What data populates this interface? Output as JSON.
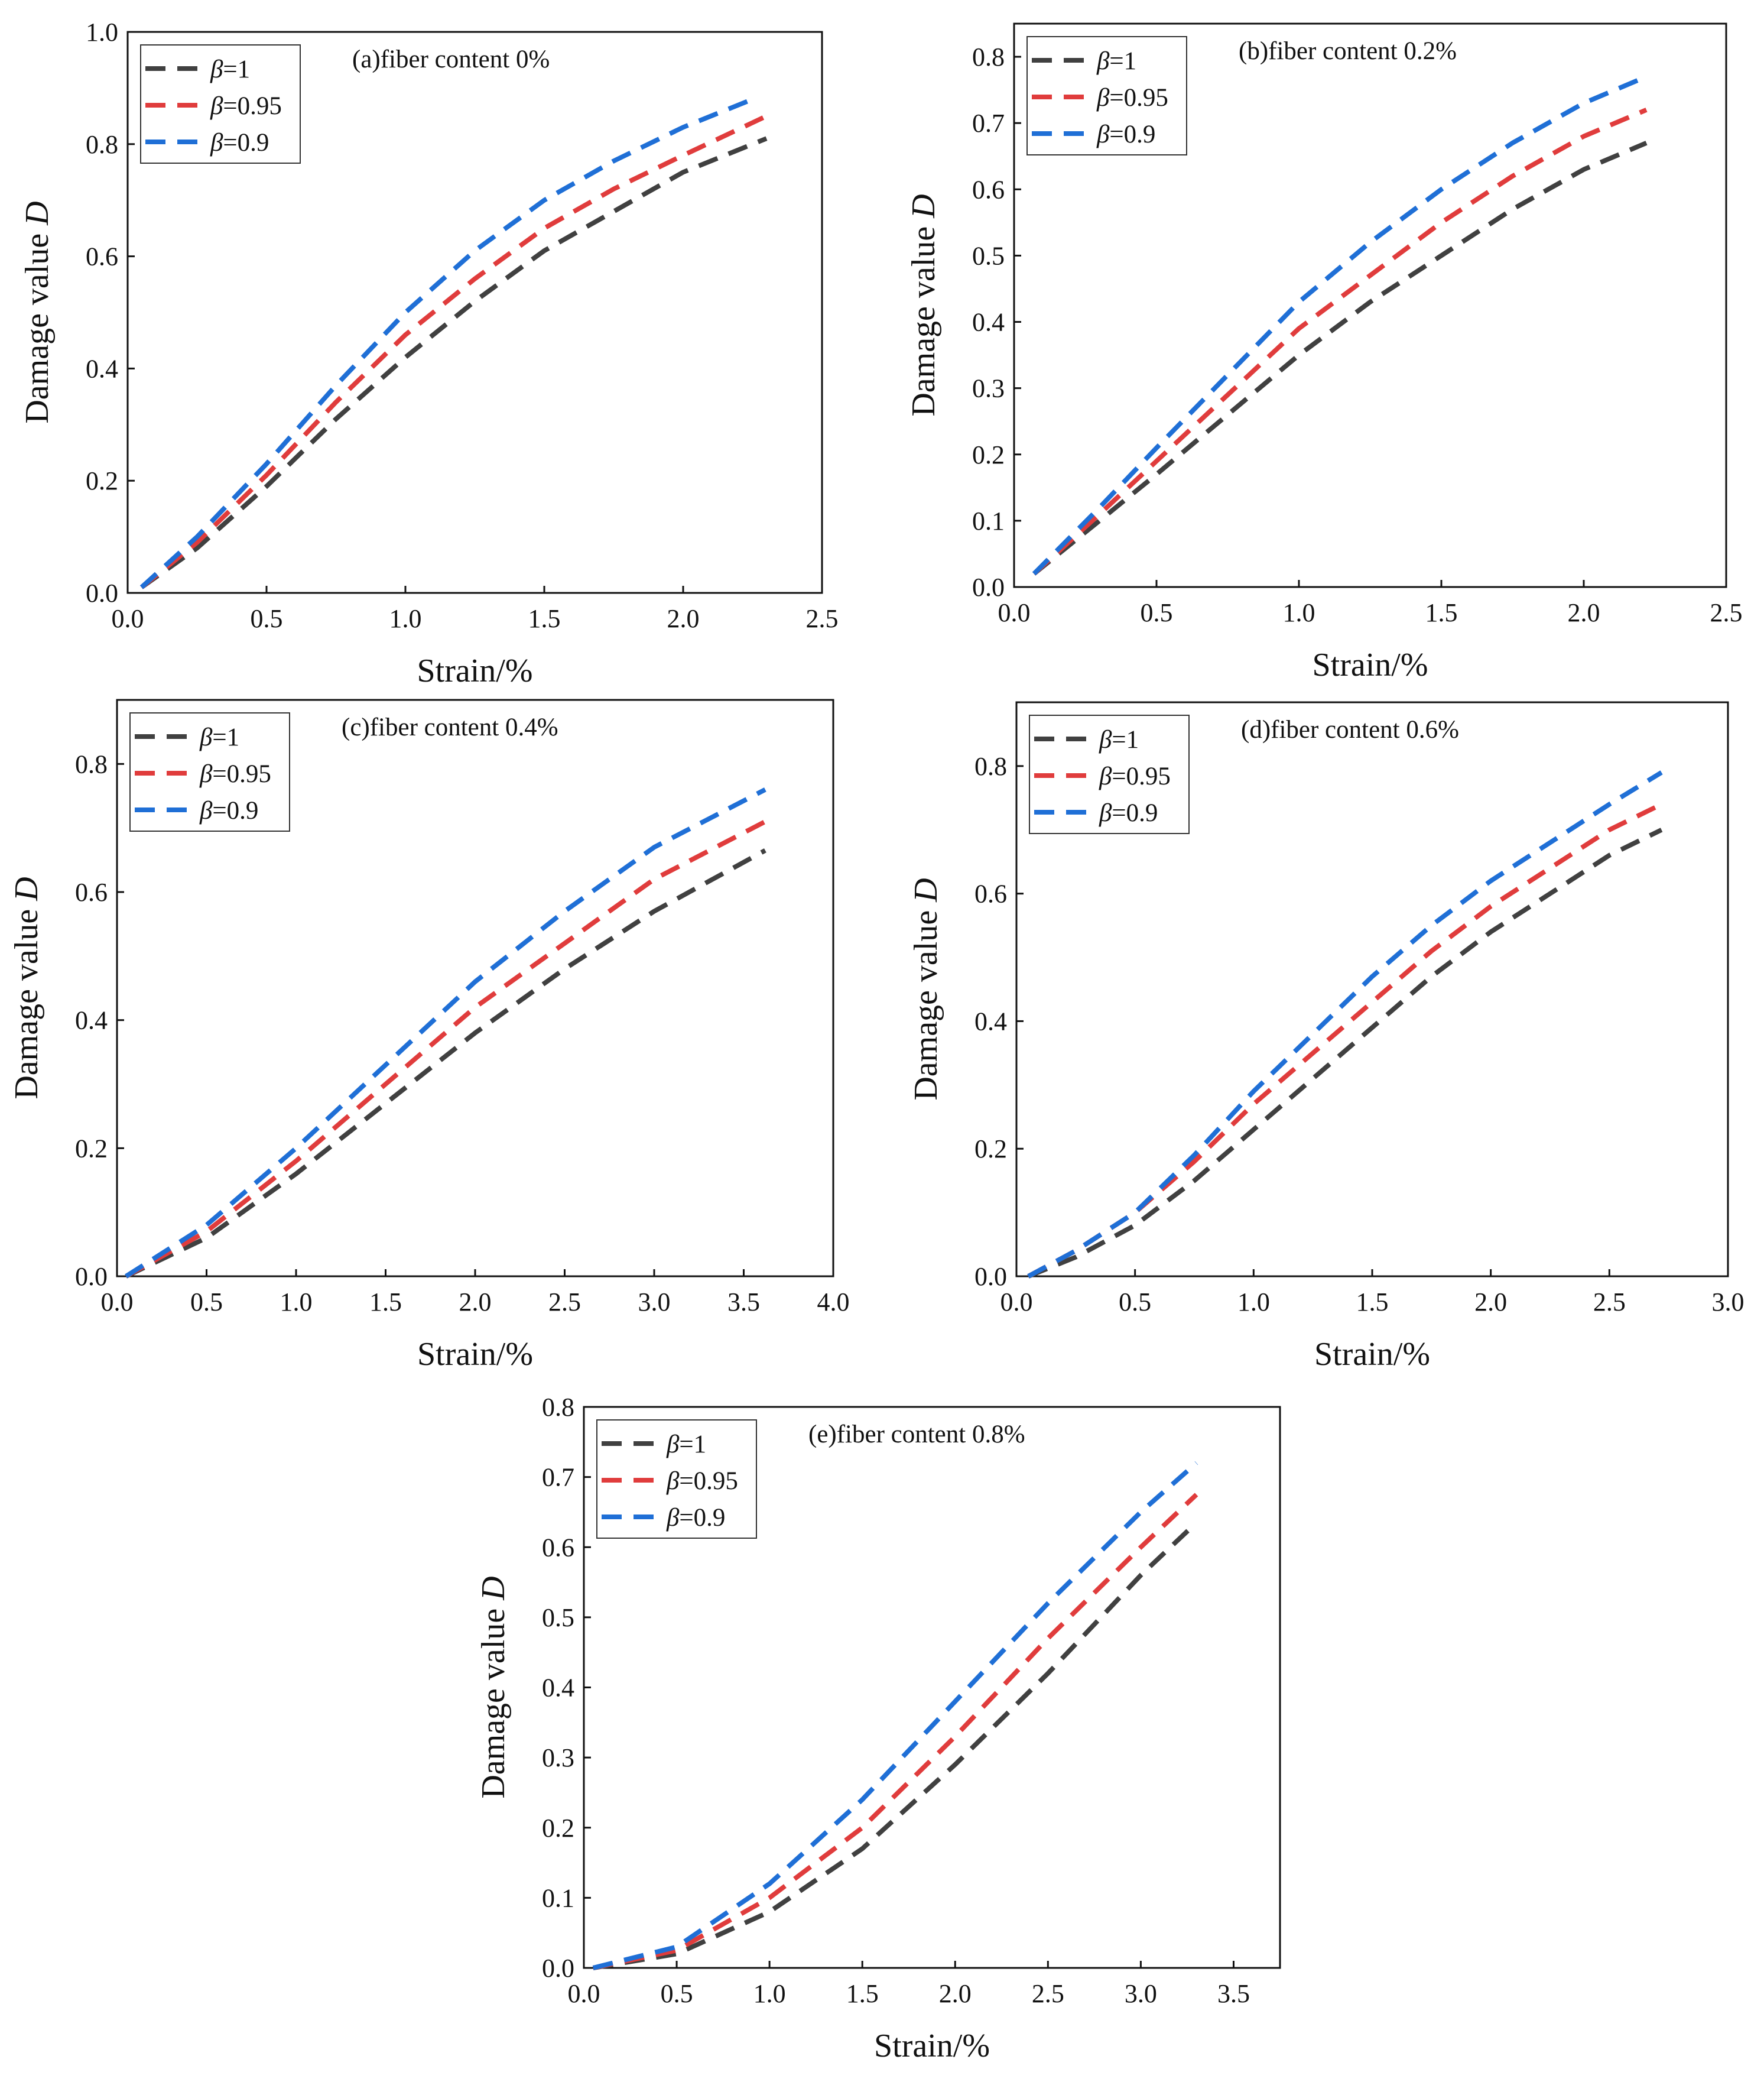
{
  "chart_data": [
    {
      "type": "line",
      "id": "a",
      "title": "(a)fiber content 0%",
      "xlabel": "Strain/%",
      "ylabel": "Damage value D",
      "xlim": [
        0,
        2.5
      ],
      "ylim": [
        0,
        1.0
      ],
      "xticks": [
        "0.0",
        "0.5",
        "1.0",
        "1.5",
        "2.0",
        "2.5"
      ],
      "yticks": [
        "0.0",
        "0.2",
        "0.4",
        "0.6",
        "0.8",
        "1.0"
      ],
      "series": [
        {
          "name": "β=1",
          "beta": "1",
          "color": "#404040",
          "x": [
            0.05,
            0.25,
            0.5,
            0.75,
            1.0,
            1.25,
            1.5,
            1.75,
            2.0,
            2.3
          ],
          "y": [
            0.01,
            0.08,
            0.19,
            0.31,
            0.42,
            0.52,
            0.61,
            0.68,
            0.75,
            0.81
          ]
        },
        {
          "name": "β=0.95",
          "beta": "0.95",
          "color": "#e03c3c",
          "x": [
            0.05,
            0.25,
            0.5,
            0.75,
            1.0,
            1.25,
            1.5,
            1.75,
            2.0,
            2.3
          ],
          "y": [
            0.01,
            0.09,
            0.21,
            0.34,
            0.46,
            0.56,
            0.65,
            0.72,
            0.78,
            0.85
          ]
        },
        {
          "name": "β=0.9",
          "beta": "0.9",
          "color": "#1f6fd6",
          "x": [
            0.05,
            0.25,
            0.5,
            0.75,
            1.0,
            1.25,
            1.5,
            1.75,
            2.0,
            2.25
          ],
          "y": [
            0.01,
            0.1,
            0.23,
            0.37,
            0.5,
            0.61,
            0.7,
            0.77,
            0.83,
            0.88
          ]
        }
      ]
    },
    {
      "type": "line",
      "id": "b",
      "title": "(b)fiber content 0.2%",
      "xlabel": "Strain/%",
      "ylabel": "Damage value D",
      "xlim": [
        0,
        2.5
      ],
      "ylim": [
        0,
        0.85
      ],
      "xticks": [
        "0.0",
        "0.5",
        "1.0",
        "1.5",
        "2.0",
        "2.5"
      ],
      "yticks": [
        "0.0",
        "0.1",
        "0.2",
        "0.3",
        "0.4",
        "0.5",
        "0.6",
        "0.7",
        "0.8"
      ],
      "series": [
        {
          "name": "β=1",
          "beta": "1",
          "color": "#404040",
          "x": [
            0.07,
            0.3,
            0.5,
            0.75,
            1.0,
            1.25,
            1.5,
            1.75,
            2.0,
            2.22
          ],
          "y": [
            0.02,
            0.1,
            0.17,
            0.26,
            0.35,
            0.43,
            0.5,
            0.57,
            0.63,
            0.67
          ]
        },
        {
          "name": "β=0.95",
          "beta": "0.95",
          "color": "#e03c3c",
          "x": [
            0.07,
            0.3,
            0.5,
            0.75,
            1.0,
            1.25,
            1.5,
            1.75,
            2.0,
            2.22
          ],
          "y": [
            0.02,
            0.11,
            0.19,
            0.29,
            0.39,
            0.47,
            0.55,
            0.62,
            0.68,
            0.72
          ]
        },
        {
          "name": "β=0.9",
          "beta": "0.9",
          "color": "#1f6fd6",
          "x": [
            0.07,
            0.3,
            0.5,
            0.75,
            1.0,
            1.25,
            1.5,
            1.75,
            2.0,
            2.22
          ],
          "y": [
            0.02,
            0.12,
            0.21,
            0.32,
            0.43,
            0.52,
            0.6,
            0.67,
            0.73,
            0.77
          ]
        }
      ]
    },
    {
      "type": "line",
      "id": "c",
      "title": "(c)fiber content 0.4%",
      "xlabel": "Strain/%",
      "ylabel": "Damage value D",
      "xlim": [
        0,
        4.0
      ],
      "ylim": [
        0,
        0.9
      ],
      "xticks": [
        "0.0",
        "0.5",
        "1.0",
        "1.5",
        "2.0",
        "2.5",
        "3.0",
        "3.5",
        "4.0"
      ],
      "yticks": [
        "0.0",
        "0.2",
        "0.4",
        "0.6",
        "0.8"
      ],
      "series": [
        {
          "name": "β=1",
          "beta": "1",
          "color": "#404040",
          "x": [
            0.05,
            0.5,
            1.0,
            1.5,
            2.0,
            2.5,
            3.0,
            3.62
          ],
          "y": [
            0.0,
            0.06,
            0.16,
            0.27,
            0.38,
            0.48,
            0.57,
            0.665
          ]
        },
        {
          "name": "β=0.95",
          "beta": "0.95",
          "color": "#e03c3c",
          "x": [
            0.05,
            0.5,
            1.0,
            1.5,
            2.0,
            2.5,
            3.0,
            3.62
          ],
          "y": [
            0.0,
            0.07,
            0.18,
            0.3,
            0.42,
            0.52,
            0.62,
            0.71
          ]
        },
        {
          "name": "β=0.9",
          "beta": "0.9",
          "color": "#1f6fd6",
          "x": [
            0.05,
            0.5,
            1.0,
            1.5,
            2.0,
            2.5,
            3.0,
            3.62
          ],
          "y": [
            0.0,
            0.08,
            0.2,
            0.33,
            0.46,
            0.57,
            0.67,
            0.76
          ]
        }
      ]
    },
    {
      "type": "line",
      "id": "d",
      "title": "(d)fiber content 0.6%",
      "xlabel": "Strain/%",
      "ylabel": "Damage value D",
      "xlim": [
        0,
        3.0
      ],
      "ylim": [
        0,
        0.9
      ],
      "xticks": [
        "0.0",
        "0.5",
        "1.0",
        "1.5",
        "2.0",
        "2.5",
        "3.0"
      ],
      "yticks": [
        "0.0",
        "0.2",
        "0.4",
        "0.6",
        "0.8"
      ],
      "series": [
        {
          "name": "β=1",
          "beta": "1",
          "color": "#404040",
          "x": [
            0.05,
            0.25,
            0.5,
            0.75,
            1.0,
            1.25,
            1.5,
            1.75,
            2.0,
            2.25,
            2.5,
            2.72
          ],
          "y": [
            0.0,
            0.03,
            0.08,
            0.15,
            0.23,
            0.31,
            0.39,
            0.47,
            0.54,
            0.6,
            0.66,
            0.7
          ]
        },
        {
          "name": "β=0.95",
          "beta": "0.95",
          "color": "#e03c3c",
          "x": [
            0.05,
            0.25,
            0.5,
            0.75,
            1.0,
            1.25,
            1.5,
            1.75,
            2.0,
            2.25,
            2.5,
            2.72
          ],
          "y": [
            0.0,
            0.04,
            0.1,
            0.18,
            0.27,
            0.35,
            0.43,
            0.51,
            0.58,
            0.64,
            0.7,
            0.74
          ]
        },
        {
          "name": "β=0.9",
          "beta": "0.9",
          "color": "#1f6fd6",
          "x": [
            0.05,
            0.25,
            0.5,
            0.75,
            1.0,
            1.25,
            1.5,
            1.75,
            2.0,
            2.25,
            2.5,
            2.72
          ],
          "y": [
            0.0,
            0.04,
            0.1,
            0.19,
            0.29,
            0.38,
            0.47,
            0.55,
            0.62,
            0.68,
            0.74,
            0.79
          ]
        }
      ]
    },
    {
      "type": "line",
      "id": "e",
      "title": "(e)fiber content 0.8%",
      "xlabel": "Strain/%",
      "ylabel": "Damage value D",
      "xlim": [
        0,
        3.75
      ],
      "ylim": [
        0,
        0.8
      ],
      "xticks": [
        "0.0",
        "0.5",
        "1.0",
        "1.5",
        "2.0",
        "2.5",
        "3.0",
        "3.5"
      ],
      "yticks": [
        "0.0",
        "0.1",
        "0.2",
        "0.3",
        "0.4",
        "0.5",
        "0.6",
        "0.7",
        "0.8"
      ],
      "series": [
        {
          "name": "β=1",
          "beta": "1",
          "color": "#404040",
          "x": [
            0.05,
            0.5,
            1.0,
            1.5,
            2.0,
            2.5,
            3.0,
            3.3
          ],
          "y": [
            0.0,
            0.02,
            0.08,
            0.17,
            0.29,
            0.42,
            0.56,
            0.635
          ]
        },
        {
          "name": "β=0.95",
          "beta": "0.95",
          "color": "#e03c3c",
          "x": [
            0.05,
            0.5,
            1.0,
            1.5,
            2.0,
            2.5,
            3.0,
            3.3
          ],
          "y": [
            0.0,
            0.025,
            0.1,
            0.2,
            0.33,
            0.47,
            0.6,
            0.675
          ]
        },
        {
          "name": "β=0.9",
          "beta": "0.9",
          "color": "#1f6fd6",
          "x": [
            0.05,
            0.5,
            1.0,
            1.5,
            2.0,
            2.5,
            3.0,
            3.3
          ],
          "y": [
            0.0,
            0.03,
            0.12,
            0.24,
            0.38,
            0.52,
            0.65,
            0.72
          ]
        }
      ]
    }
  ]
}
